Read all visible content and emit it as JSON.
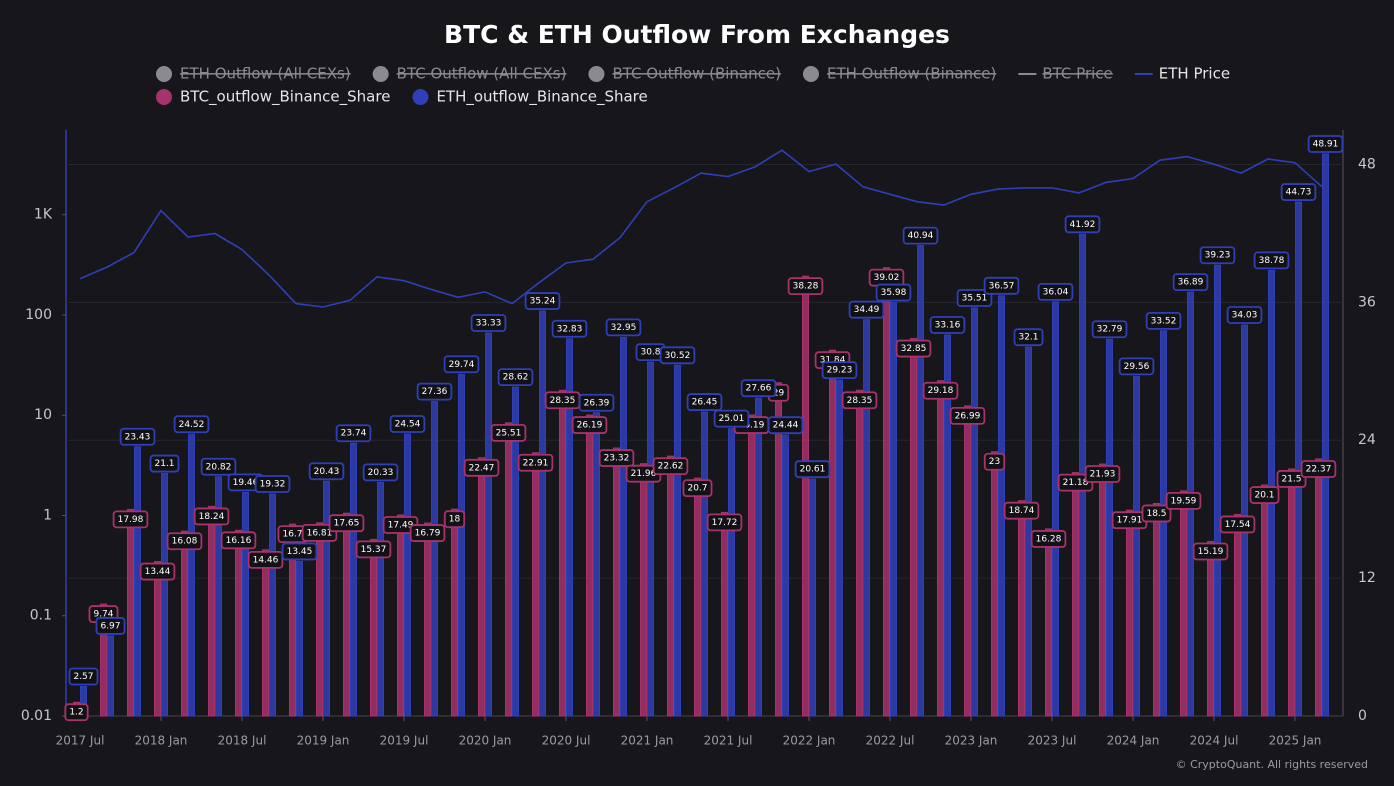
{
  "chart_data": {
    "type": "bar",
    "title": "BTC & ETH Outflow From Exchanges",
    "source": "© CryptoQuant. All rights reserved",
    "categories": [
      "2017 Jul",
      null,
      null,
      "2018 Jan",
      null,
      null,
      "2018 Jul",
      null,
      null,
      "2019 Jan",
      null,
      null,
      "2019 Jul",
      null,
      null,
      "2020 Jan",
      null,
      null,
      "2020 Jul",
      null,
      null,
      "2021 Jan",
      null,
      null,
      "2021 Jul",
      null,
      null,
      "2022 Jan",
      null,
      null,
      "2022 Jul",
      null,
      null,
      "2023 Jan",
      null,
      null,
      "2023 Jul",
      null,
      null,
      "2024 Jan",
      null,
      null,
      "2024 Jul",
      null,
      null,
      "2025 Jan",
      null
    ],
    "ylog": true,
    "ylim": [
      0.01,
      7000
    ],
    "yticks": [
      0.01,
      0.1,
      1,
      10,
      100,
      {
        "value": 1000,
        "label": "1K"
      }
    ],
    "y2lim": [
      0,
      51
    ],
    "y2ticks": [
      0,
      12,
      24,
      36,
      48
    ],
    "grid": "y2",
    "hidden_legend": [
      {
        "name": "ETH Outflow (All CEXs)",
        "marker": "circle"
      },
      {
        "name": "BTC Outflow (All CEXs)",
        "marker": "circle"
      },
      {
        "name": "BTC Outflow (Binance)",
        "marker": "circle"
      },
      {
        "name": "ETH Outflow (Binance)",
        "marker": "circle"
      },
      {
        "name": "BTC Price",
        "marker": "line"
      }
    ],
    "series": [
      {
        "name": "ETH Price",
        "type": "line",
        "axis": "y",
        "color": "#2f3fb8",
        "values": [
          230,
          300,
          420,
          1100,
          600,
          650,
          450,
          250,
          130,
          120,
          140,
          240,
          220,
          180,
          150,
          170,
          130,
          210,
          330,
          360,
          590,
          1350,
          1850,
          2600,
          2400,
          3000,
          4400,
          2700,
          3200,
          1900,
          1600,
          1350,
          1250,
          1600,
          1800,
          1850,
          1850,
          1650,
          2100,
          2300,
          3500,
          3800,
          3200,
          2600,
          3600,
          3300,
          1900
        ]
      },
      {
        "name": "BTC_outflow_Binance_Share",
        "type": "bar",
        "axis": "y2",
        "color": "#a8336b",
        "values": [
          1.2,
          9.74,
          17.98,
          13.44,
          16.08,
          18.24,
          16.16,
          14.46,
          16.7,
          16.81,
          17.65,
          15.37,
          17.49,
          16.79,
          18,
          22.47,
          25.51,
          22.91,
          28.35,
          26.19,
          23.32,
          21.96,
          22.62,
          20.7,
          17.72,
          26.19,
          29,
          38.28,
          31.84,
          28.35,
          39.02,
          32.85,
          29.18,
          26.99,
          23,
          18.74,
          16.28,
          21.18,
          21.93,
          17.91,
          18.5,
          19.59,
          15.19,
          17.54,
          20.1,
          21.5,
          22.37
        ]
      },
      {
        "name": "ETH_outflow_Binance_Share",
        "type": "bar",
        "axis": "y2",
        "color": "#2f3fb8",
        "values": [
          2.57,
          6.97,
          23.43,
          21.1,
          24.52,
          20.82,
          19.46,
          19.32,
          13.45,
          20.43,
          23.74,
          20.33,
          24.54,
          27.36,
          29.74,
          33.33,
          28.62,
          35.24,
          32.83,
          26.39,
          32.95,
          30.8,
          30.52,
          26.45,
          25.01,
          27.66,
          24.44,
          20.61,
          29.23,
          34.49,
          35.98,
          40.94,
          33.16,
          35.51,
          36.57,
          32.1,
          36.04,
          41.92,
          32.79,
          29.56,
          33.52,
          36.89,
          39.23,
          34.03,
          38.78,
          44.73,
          48.91
        ]
      }
    ]
  }
}
